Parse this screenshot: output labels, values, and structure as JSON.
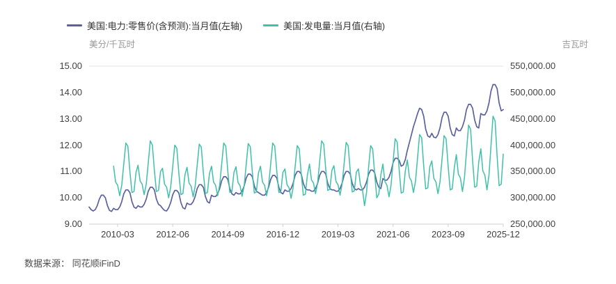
{
  "legend": [
    {
      "label": "美国:电力:零售价(含预测):当月值(左轴)",
      "color": "#5b609f"
    },
    {
      "label": "美国:发电量:当月值(右轴)",
      "color": "#3ec0a9"
    }
  ],
  "axes": {
    "left_unit": "美分/千瓦时",
    "right_unit": "吉瓦时",
    "left_ticks": [
      "15.00",
      "14.00",
      "13.00",
      "12.00",
      "11.00",
      "10.00",
      "9.00"
    ],
    "right_ticks": [
      "550,000.00",
      "500,000.00",
      "450,000.00",
      "400,000.00",
      "350,000.00",
      "300,000.00",
      "250,000.00"
    ],
    "x_ticks": [
      "2010-03",
      "2012-06",
      "2014-09",
      "2016-12",
      "2019-03",
      "2021-06",
      "2023-09",
      "2025-12"
    ]
  },
  "source": "数据来源： 同花顺iFinD",
  "chart_data": {
    "type": "line",
    "x_start": "2009-01",
    "x_end": "2025-12",
    "x_frequency": "monthly",
    "x_tick_indices": [
      14,
      41,
      68,
      95,
      122,
      149,
      176,
      203
    ],
    "left_axis": {
      "label": "美分/千瓦时",
      "min": 9,
      "max": 15
    },
    "right_axis": {
      "label": "吉瓦时",
      "min": 250000,
      "max": 550000
    },
    "grid": "top-and-bottom-border-only",
    "legend_position": "top-left",
    "series": [
      {
        "name": "美国:电力:零售价(含预测):当月值(左轴)",
        "axis": "left",
        "color": "#5b609f",
        "values": [
          9.65,
          9.55,
          9.5,
          9.55,
          9.7,
          9.95,
          10.1,
          10.1,
          10.0,
          9.7,
          9.52,
          9.48,
          9.6,
          9.55,
          9.55,
          9.65,
          9.85,
          10.15,
          10.3,
          10.3,
          10.2,
          9.85,
          9.65,
          9.6,
          9.7,
          9.65,
          9.65,
          9.75,
          9.95,
          10.25,
          10.4,
          10.4,
          10.3,
          9.95,
          9.75,
          9.7,
          9.6,
          9.52,
          9.5,
          9.62,
          9.82,
          10.12,
          10.28,
          10.28,
          10.18,
          9.82,
          9.62,
          9.58,
          9.8,
          9.75,
          9.75,
          9.85,
          10.05,
          10.35,
          10.5,
          10.5,
          10.4,
          10.05,
          9.85,
          9.8,
          10.1,
          10.05,
          10.05,
          10.15,
          10.35,
          10.65,
          10.8,
          10.8,
          10.7,
          10.35,
          10.15,
          10.1,
          10.2,
          10.15,
          10.15,
          10.25,
          10.45,
          10.75,
          10.9,
          10.9,
          10.8,
          10.45,
          10.25,
          10.2,
          10.15,
          10.1,
          10.1,
          10.2,
          10.4,
          10.7,
          10.85,
          10.85,
          10.75,
          10.4,
          10.2,
          10.15,
          10.3,
          10.25,
          10.25,
          10.35,
          10.55,
          10.85,
          11.0,
          11.0,
          10.9,
          10.55,
          10.35,
          10.3,
          10.3,
          10.25,
          10.25,
          10.35,
          10.55,
          10.85,
          11.0,
          11.0,
          10.9,
          10.55,
          10.35,
          10.3,
          10.3,
          10.25,
          10.25,
          10.35,
          10.55,
          10.85,
          11.0,
          11.0,
          10.9,
          10.55,
          10.35,
          10.3,
          10.35,
          10.3,
          10.3,
          10.4,
          10.6,
          10.9,
          11.05,
          11.05,
          10.95,
          10.6,
          10.4,
          10.35,
          10.73,
          10.67,
          10.67,
          10.78,
          11.0,
          11.33,
          11.5,
          11.5,
          11.42,
          11.2,
          11.25,
          11.45,
          11.8,
          12.1,
          12.4,
          12.7,
          12.95,
          13.2,
          13.4,
          13.35,
          13.1,
          12.6,
          12.35,
          12.3,
          12.45,
          12.3,
          12.28,
          12.4,
          12.65,
          13.05,
          13.25,
          13.25,
          13.1,
          12.65,
          12.4,
          12.35,
          12.65,
          12.55,
          12.55,
          12.7,
          12.95,
          13.35,
          13.55,
          13.55,
          13.4,
          12.95,
          12.7,
          12.65,
          13.2,
          13.15,
          13.15,
          13.3,
          13.6,
          14.05,
          14.3,
          14.3,
          14.15,
          13.6,
          13.3,
          13.35
        ]
      },
      {
        "name": "美国:发电量:当月值(右轴)",
        "axis": "right",
        "color": "#3ec0a9",
        "values": [
          null,
          null,
          null,
          null,
          null,
          null,
          null,
          null,
          null,
          null,
          null,
          null,
          360000,
          330000,
          324000,
          304000,
          324000,
          364000,
          404000,
          398000,
          350000,
          310000,
          312000,
          348000,
          362000,
          332000,
          326000,
          306000,
          326000,
          366000,
          408000,
          400000,
          352000,
          312000,
          314000,
          350000,
          356000,
          326000,
          320000,
          300000,
          320000,
          360000,
          400000,
          394000,
          346000,
          306000,
          308000,
          344000,
          358000,
          328000,
          322000,
          302000,
          322000,
          362000,
          402000,
          396000,
          348000,
          308000,
          310000,
          346000,
          360000,
          330000,
          324000,
          304000,
          324000,
          364000,
          404000,
          398000,
          350000,
          310000,
          312000,
          348000,
          359000,
          329000,
          323000,
          303000,
          323000,
          363000,
          403000,
          397000,
          349000,
          309000,
          311000,
          347000,
          360000,
          330000,
          324000,
          304000,
          324000,
          364000,
          404000,
          398000,
          350000,
          310000,
          312000,
          348000,
          355000,
          325000,
          319000,
          299000,
          319000,
          359000,
          399000,
          393000,
          345000,
          305000,
          307000,
          343000,
          364000,
          334000,
          328000,
          308000,
          328000,
          368000,
          408000,
          402000,
          354000,
          314000,
          316000,
          352000,
          361000,
          331000,
          325000,
          305000,
          325000,
          365000,
          405000,
          399000,
          351000,
          311000,
          313000,
          349000,
          355000,
          325000,
          315000,
          285000,
          310000,
          359000,
          399000,
          393000,
          345000,
          300000,
          307000,
          343000,
          364000,
          331000,
          324000,
          302000,
          324000,
          368000,
          412000,
          406000,
          353000,
          309000,
          311000,
          351000,
          372000,
          339000,
          332000,
          310000,
          332000,
          376000,
          420000,
          414000,
          361000,
          317000,
          319000,
          359000,
          370000,
          337000,
          330000,
          308000,
          330000,
          374000,
          418000,
          412000,
          359000,
          315000,
          317000,
          357000,
          382000,
          345000,
          338000,
          312000,
          338000,
          388000,
          438000,
          430000,
          370000,
          320000,
          322000,
          368000,
          393000,
          351000,
          343000,
          315000,
          343000,
          399000,
          455000,
          446000,
          379000,
          323000,
          326000,
          383000
        ]
      }
    ]
  }
}
